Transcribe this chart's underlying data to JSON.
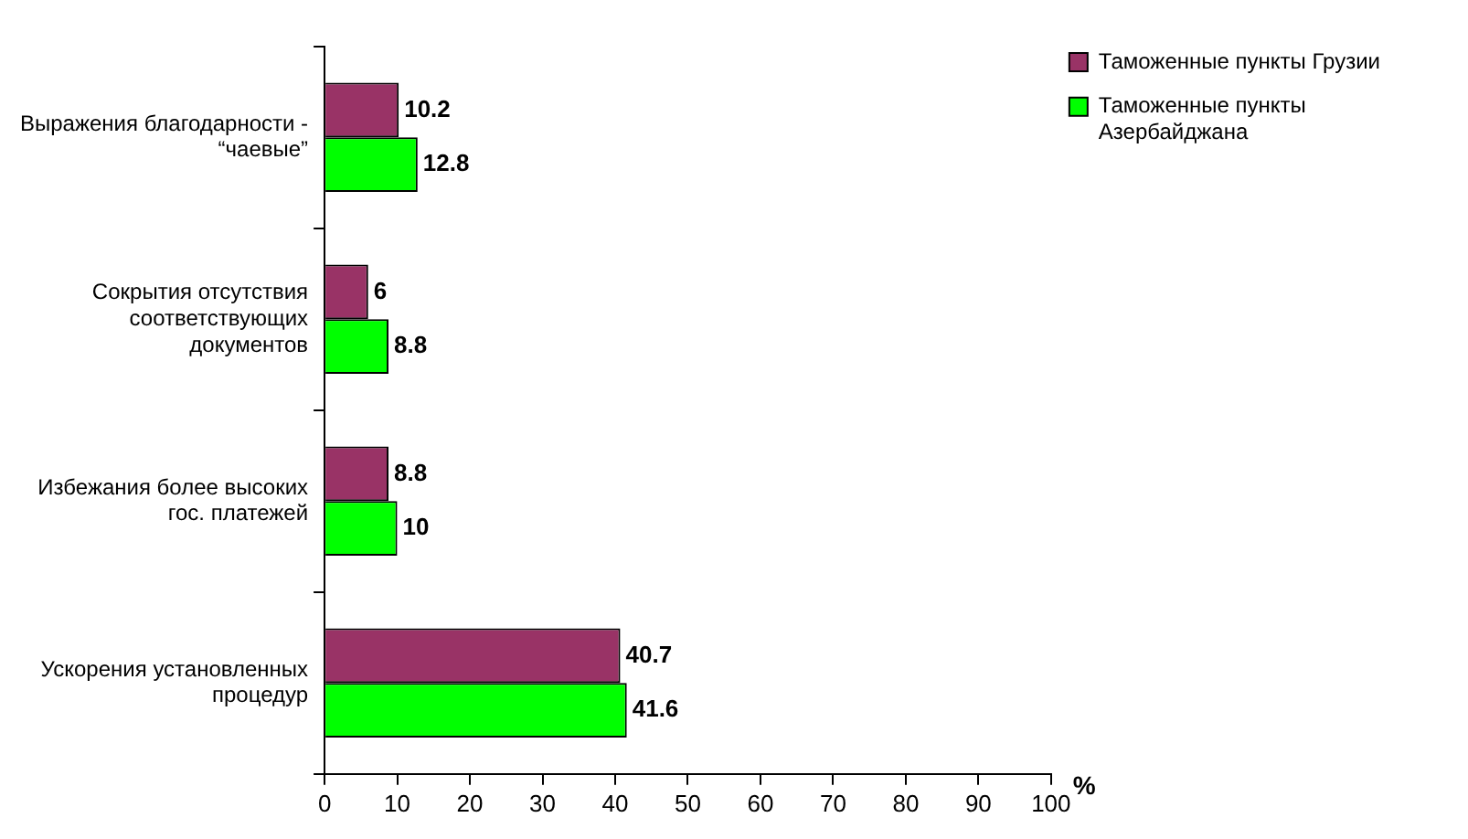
{
  "chart_data": {
    "type": "bar",
    "orientation": "horizontal",
    "categories": [
      "Выражения благодарности - “чаевые”",
      "Сокрытия отсутствия соответствующих документов",
      "Избежания более высоких гос. платежей",
      "Ускорения установленных процедур"
    ],
    "series": [
      {
        "name": "Таможенные пункты Грузии",
        "color": "#993366",
        "values": [
          10.2,
          6,
          8.8,
          40.7
        ]
      },
      {
        "name": "Таможенные пункты Азербайджана",
        "color": "#00ff00",
        "values": [
          12.8,
          8.8,
          10,
          41.6
        ]
      }
    ],
    "xlabel": "%",
    "xlim": [
      0,
      100
    ],
    "xticks": [
      0,
      10,
      20,
      30,
      40,
      50,
      60,
      70,
      80,
      90,
      100
    ],
    "data_labels": true,
    "grid": false,
    "legend": "right"
  }
}
